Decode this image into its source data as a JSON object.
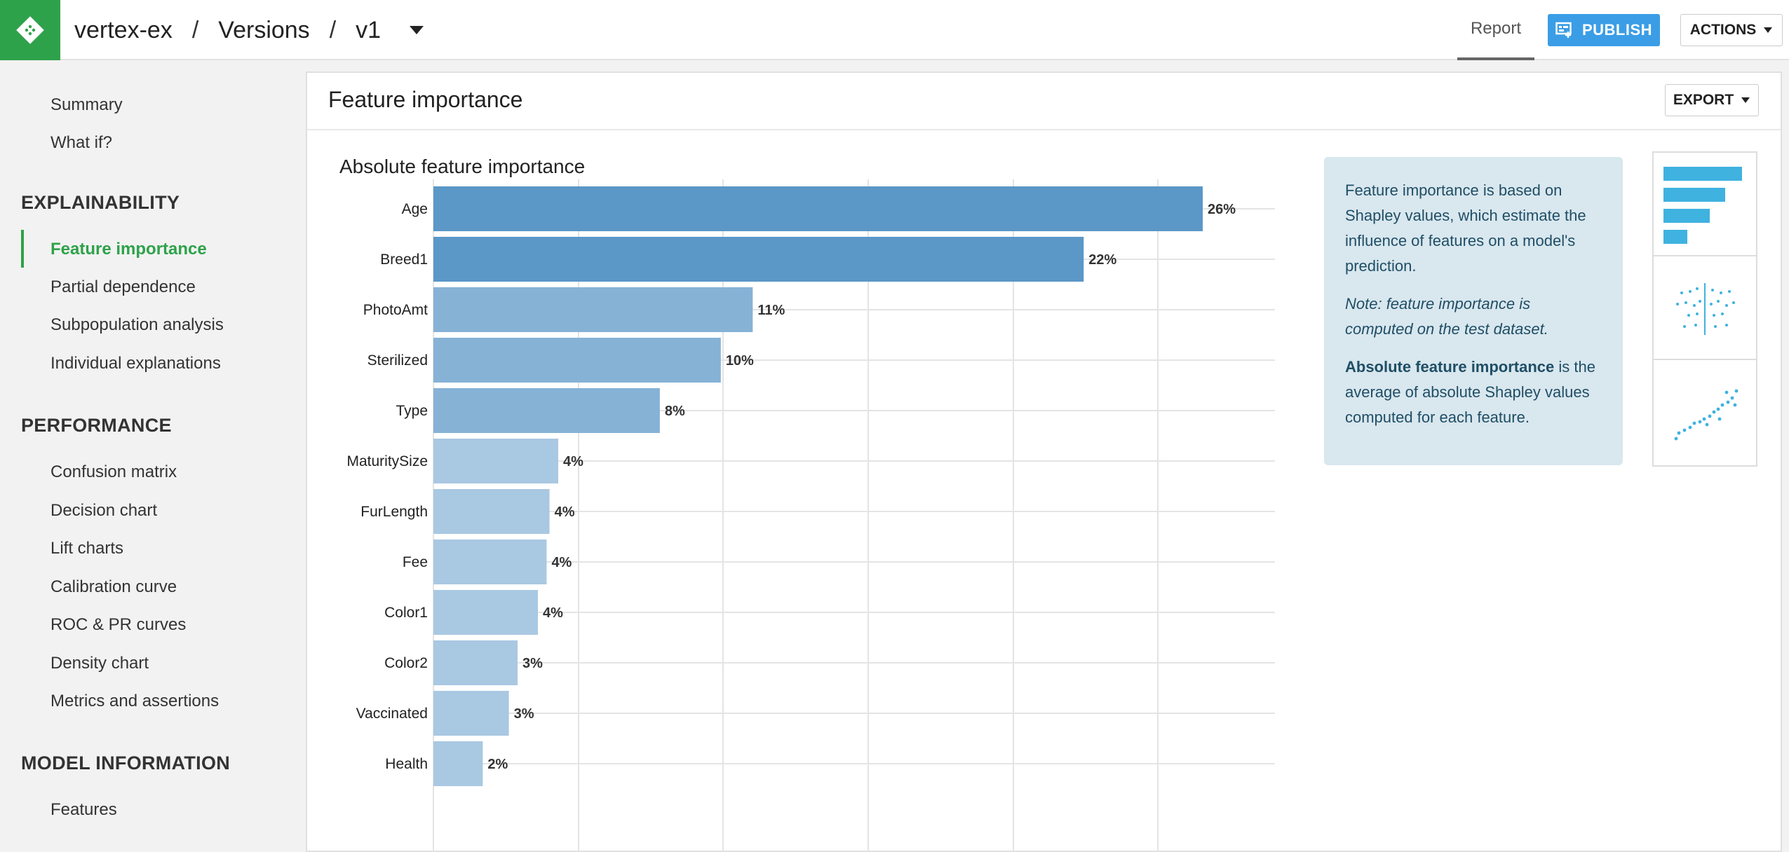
{
  "topbar": {
    "project": "vertex-ex",
    "section": "Versions",
    "version": "v1",
    "separator": "/",
    "tab_report": "Report",
    "publish_label": "PUBLISH",
    "actions_label": "ACTIONS"
  },
  "sidebar": {
    "items_top": [
      "Summary",
      "What if?"
    ],
    "section_explainability": "EXPLAINABILITY",
    "explainability": [
      "Feature importance",
      "Partial dependence",
      "Subpopulation analysis",
      "Individual explanations"
    ],
    "section_performance": "PERFORMANCE",
    "performance": [
      "Confusion matrix",
      "Decision chart",
      "Lift charts",
      "Calibration curve",
      "ROC & PR curves",
      "Density chart",
      "Metrics and assertions"
    ],
    "section_model_info": "MODEL INFORMATION",
    "model_info": [
      "Features"
    ]
  },
  "panel": {
    "title": "Feature importance",
    "export_label": "EXPORT"
  },
  "info": {
    "p1": "Feature importance is based on Shapley values, which estimate the influence of features on a model's prediction.",
    "p2": "Note: feature importance is computed on the test dataset.",
    "p3_bold": "Absolute feature importance",
    "p3_rest": " is the average of absolute Shapley values computed for each feature."
  },
  "colors": {
    "accent_green": "#2ea24a",
    "publish_blue": "#3b9de6",
    "bar_dark": "#5b97c7",
    "bar_mid": "#86b2d6",
    "bar_light": "#a9c8e2",
    "thumb_blue": "#3fb2e0"
  },
  "chart_data": {
    "type": "bar",
    "orientation": "horizontal",
    "title": "Absolute feature importance",
    "categories": [
      "Age",
      "Breed1",
      "PhotoAmt",
      "Sterilized",
      "Type",
      "MaturitySize",
      "FurLength",
      "Fee",
      "Color1",
      "Color2",
      "Vaccinated",
      "Health"
    ],
    "values": [
      26,
      22,
      11,
      10,
      8,
      4,
      4,
      4,
      4,
      3,
      3,
      2
    ],
    "raw_values": [
      26.5,
      22.4,
      11.0,
      9.9,
      7.8,
      4.3,
      4.0,
      3.9,
      3.6,
      2.9,
      2.6,
      1.7
    ],
    "labels": [
      "26%",
      "22%",
      "11%",
      "10%",
      "8%",
      "4%",
      "4%",
      "4%",
      "4%",
      "3%",
      "3%",
      "2%"
    ],
    "xlim": [
      0,
      26.5
    ],
    "grid": true
  }
}
